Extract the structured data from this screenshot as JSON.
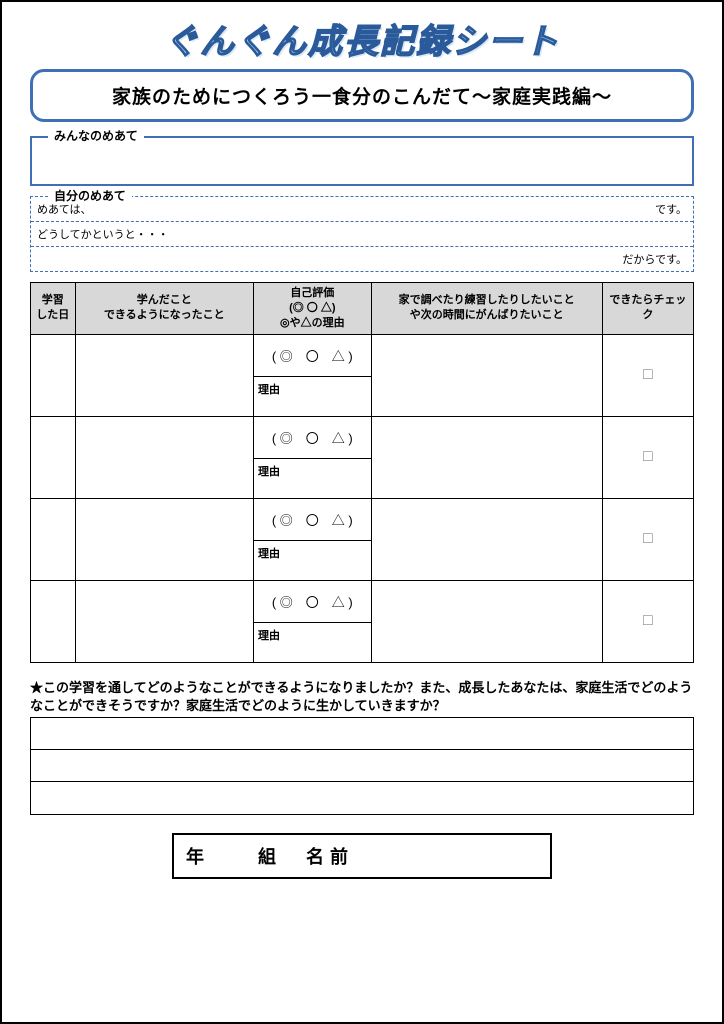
{
  "title": "ぐんぐん成長記録シート",
  "subtitle": "家族のためにつくろう一食分のこんだて～家庭実践編～",
  "meate": {
    "everyone_label": "みんなのめあて",
    "self_label": "自分のめあて",
    "row1_left": "めあては、",
    "row1_right": "です。",
    "row2_left": "どうしてかというと・・・",
    "row3_right": "だからです。"
  },
  "table": {
    "headers": {
      "date": "学習\nした日",
      "learned": "学んだこと\nできるようになったこと",
      "self_eval": "自己評価\n(◎ 〇 △)\n◎や△の理由",
      "home": "家で調べたり練習したりしたいこと\nや次の時間にがんばりたいこと",
      "check": "できたらチェック"
    },
    "rating_text": "( ◎　〇　△ )",
    "reason_label": "理由",
    "check_mark": "□",
    "row_count": 4
  },
  "reflection": {
    "label": "★この学習を通してどのようなことができるようになりましたか？また、成長したあなたは、家庭生活でどのようなことができそうですか？家庭生活でどのように生かしていきますか？",
    "line_count": 3
  },
  "name_line": "年　　組　名前",
  "colors": {
    "border_blue": "#3f6fb4",
    "title_fill": "#9dcdf0",
    "title_stroke": "#2a5a9a",
    "table_header_bg": "#d8d8d8"
  }
}
